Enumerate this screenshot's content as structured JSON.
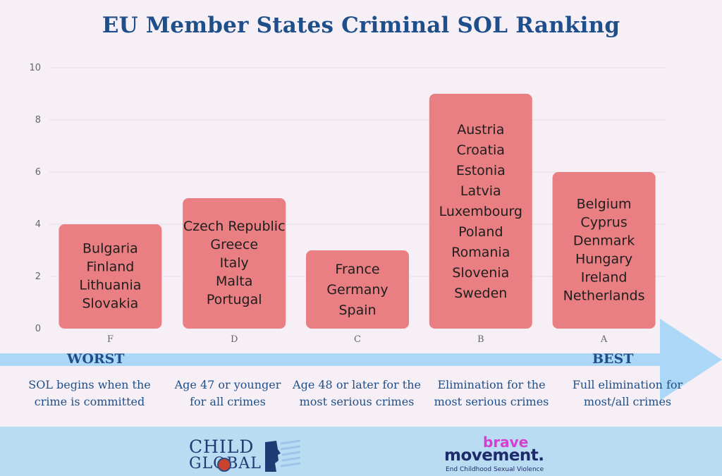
{
  "chart_data": {
    "type": "bar",
    "title": "EU Member States Criminal SOL Ranking",
    "categories": [
      "F",
      "D",
      "C",
      "B",
      "A"
    ],
    "values": [
      4,
      5,
      3,
      9,
      6
    ],
    "ylim": [
      0,
      10
    ],
    "yticks": [
      "0",
      "2",
      "4",
      "6",
      "8",
      "10"
    ],
    "grid": true,
    "xlabel": "",
    "ylabel": "",
    "bar_labels": [
      [
        "Bulgaria",
        "Finland",
        "Lithuania",
        "Slovakia"
      ],
      [
        "Czech Republic",
        "Greece",
        "Italy",
        "Malta",
        "Portugal"
      ],
      [
        "France",
        "Germany",
        "Spain"
      ],
      [
        "Austria",
        "Croatia",
        "Estonia",
        "Latvia",
        "Luxembourg",
        "Poland",
        "Romania",
        "Slovenia",
        "Sweden"
      ],
      [
        "Belgium",
        "Cyprus",
        "Denmark",
        "Hungary",
        "Ireland",
        "Netherlands"
      ]
    ],
    "scale": {
      "worst_label": "WORST",
      "best_label": "BEST",
      "descriptions": [
        [
          "SOL begins when the",
          "crime is committed"
        ],
        [
          "Age 47 or younger",
          "for all crimes"
        ],
        [
          "Age 48 or later for the",
          "most serious crimes"
        ],
        [
          "Elimination for the",
          "most serious crimes"
        ],
        [
          "Full elimination for",
          "most/all crimes"
        ]
      ]
    },
    "colors": {
      "bar": "#e97f82",
      "title": "#1f4f8a",
      "arrow": "#9fd2f7",
      "footer": "#b9dcf3"
    }
  },
  "footer": {
    "logo_left": {
      "line1": "CHILD",
      "line2": "GLOBAL"
    },
    "logo_right": {
      "line1": "brave",
      "line2": "movement.",
      "tagline": "End Childhood Sexual Violence"
    }
  }
}
